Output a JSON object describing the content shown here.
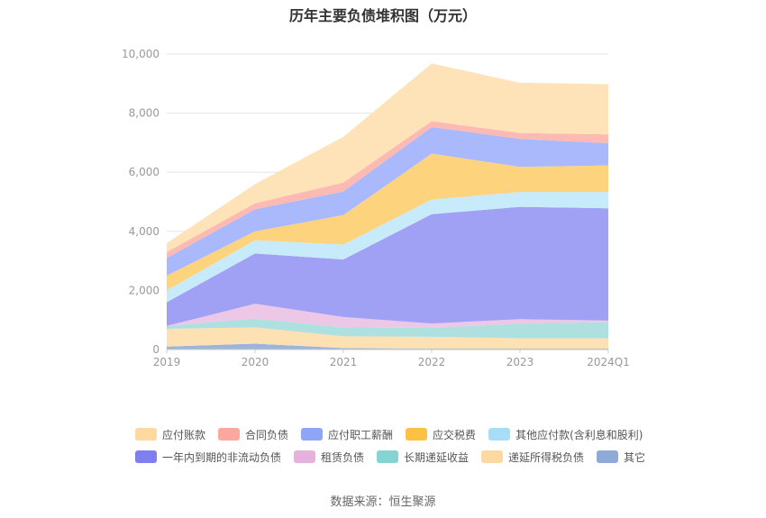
{
  "chart_data": {
    "type": "area",
    "stacked": true,
    "title": "历年主要负债堆积图（万元）",
    "categories": [
      "2019",
      "2020",
      "2021",
      "2022",
      "2023",
      "2024Q1"
    ],
    "ylim": [
      0,
      10000
    ],
    "yticks": [
      "0",
      "2,000",
      "4,000",
      "6,000",
      "8,000",
      "10,000"
    ],
    "grid": true,
    "legend_position": "bottom",
    "series": [
      {
        "name": "其它",
        "color": "#9db4da",
        "values": [
          100,
          200,
          50,
          30,
          30,
          30
        ]
      },
      {
        "name": "递延所得税负债",
        "color": "#fde1b3",
        "values": [
          600,
          550,
          400,
          400,
          350,
          350
        ]
      },
      {
        "name": "长期递延收益",
        "color": "#aee0e0",
        "values": [
          100,
          300,
          300,
          300,
          500,
          550
        ]
      },
      {
        "name": "租赁负债",
        "color": "#ecc8e6",
        "values": [
          0,
          500,
          350,
          150,
          150,
          50
        ]
      },
      {
        "name": "一年内到期的非流动负债",
        "color": "#a0a0f5",
        "values": [
          800,
          1700,
          1950,
          3700,
          3800,
          3800
        ]
      },
      {
        "name": "其他应付款(含利息和股利)",
        "color": "#c7ebfa",
        "values": [
          400,
          450,
          500,
          500,
          500,
          550
        ]
      },
      {
        "name": "应交税费",
        "color": "#fed37d",
        "values": [
          500,
          300,
          1000,
          1550,
          850,
          900
        ]
      },
      {
        "name": "应付职工薪酬",
        "color": "#aab9fc",
        "values": [
          600,
          750,
          800,
          900,
          950,
          750
        ]
      },
      {
        "name": "合同负债",
        "color": "#fdbab3",
        "values": [
          200,
          200,
          300,
          200,
          200,
          300
        ]
      },
      {
        "name": "应付账款",
        "color": "#fee3b8",
        "values": [
          300,
          650,
          1550,
          1950,
          1700,
          1700
        ]
      }
    ]
  },
  "legend": {
    "rows": [
      [
        {
          "label": "应付账款",
          "color": "#fed9a0"
        },
        {
          "label": "合同负债",
          "color": "#fba99e"
        },
        {
          "label": "应付职工薪酬",
          "color": "#8fa5f7"
        },
        {
          "label": "应交税费",
          "color": "#fdc244"
        },
        {
          "label": "其他应付款(含利息和股利)",
          "color": "#a8def5"
        }
      ],
      [
        {
          "label": "一年内到期的非流动负债",
          "color": "#7f7ff0"
        },
        {
          "label": "租赁负债",
          "color": "#e5b2de"
        },
        {
          "label": "长期递延收益",
          "color": "#86d3d3"
        },
        {
          "label": "递延所得税负债",
          "color": "#fdd8a0"
        },
        {
          "label": "其它",
          "color": "#8daad8"
        }
      ]
    ]
  },
  "source": "数据来源：恒生聚源"
}
